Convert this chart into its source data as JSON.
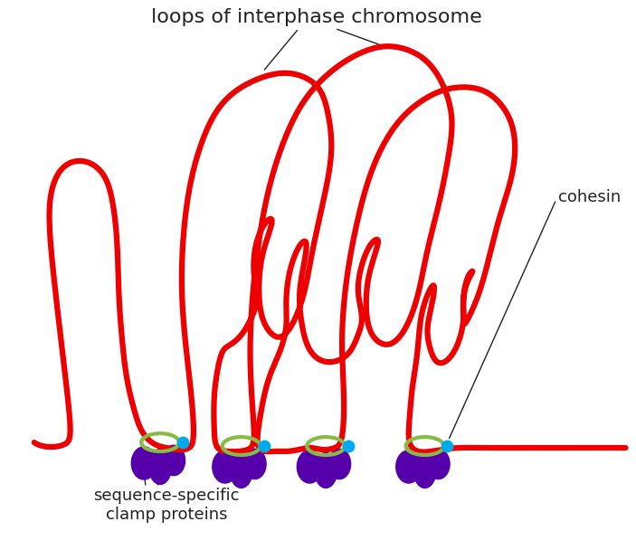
{
  "title": "loops of interphase chromosome",
  "label_cohesin": "cohesin",
  "label_clamp": "sequence-specific\nclamp proteins",
  "chromosome_color": "#ee0000",
  "chromosome_lw": 4.5,
  "cohesin_color": "#88bb44",
  "cohesin_lw": 3.0,
  "dot_color": "#00aaee",
  "dot_size": 80,
  "clamp_color": "#5500aa",
  "bg_color": "#ffffff",
  "text_color": "#222222",
  "title_fontsize": 16,
  "label_fontsize": 13
}
